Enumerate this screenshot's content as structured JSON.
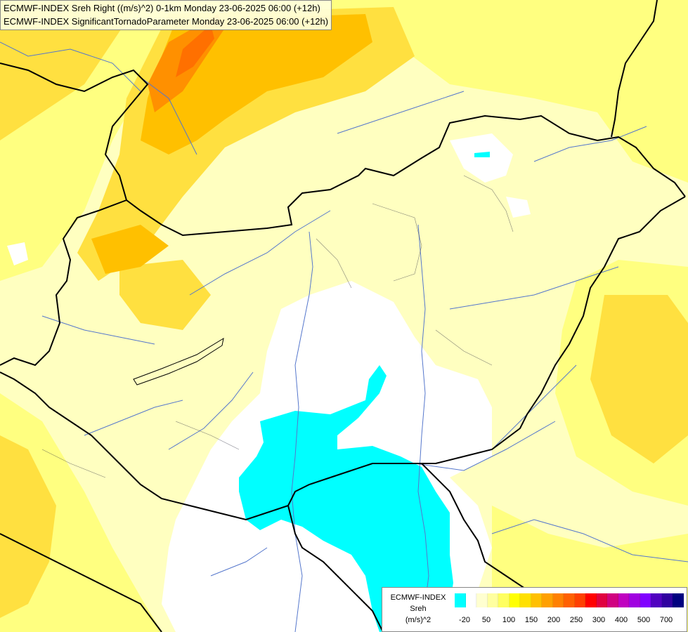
{
  "title": {
    "line1": "ECMWF-INDEX Sreh Right ((m/s)^2) 0-1km Monday 23-06-2025 06:00 (+12h)",
    "line2": "ECMWF-INDEX SignificantTornadoParameter Monday 23-06-2025 06:00 (+12h)"
  },
  "legend": {
    "model": "ECMWF-INDEX",
    "variable": "Sreh",
    "unit": "(m/s)^2",
    "ticks": [
      "-20",
      "50",
      "100",
      "150",
      "200",
      "250",
      "300",
      "400",
      "500",
      "700"
    ],
    "colors": [
      "#00ffff",
      "#ffffff",
      "#ffffd0",
      "#ffffa0",
      "#ffff60",
      "#ffff00",
      "#ffe000",
      "#ffc000",
      "#ffa000",
      "#ff8000",
      "#ff6000",
      "#ff4000",
      "#ff0000",
      "#e00040",
      "#d00080",
      "#c000c0",
      "#a000e0",
      "#8000ff",
      "#5000c0",
      "#3000a0",
      "#000080"
    ]
  },
  "colors": {
    "background": "#ffffc0",
    "low": "#00ffff",
    "border": "#000000",
    "river": "#5577cc"
  }
}
